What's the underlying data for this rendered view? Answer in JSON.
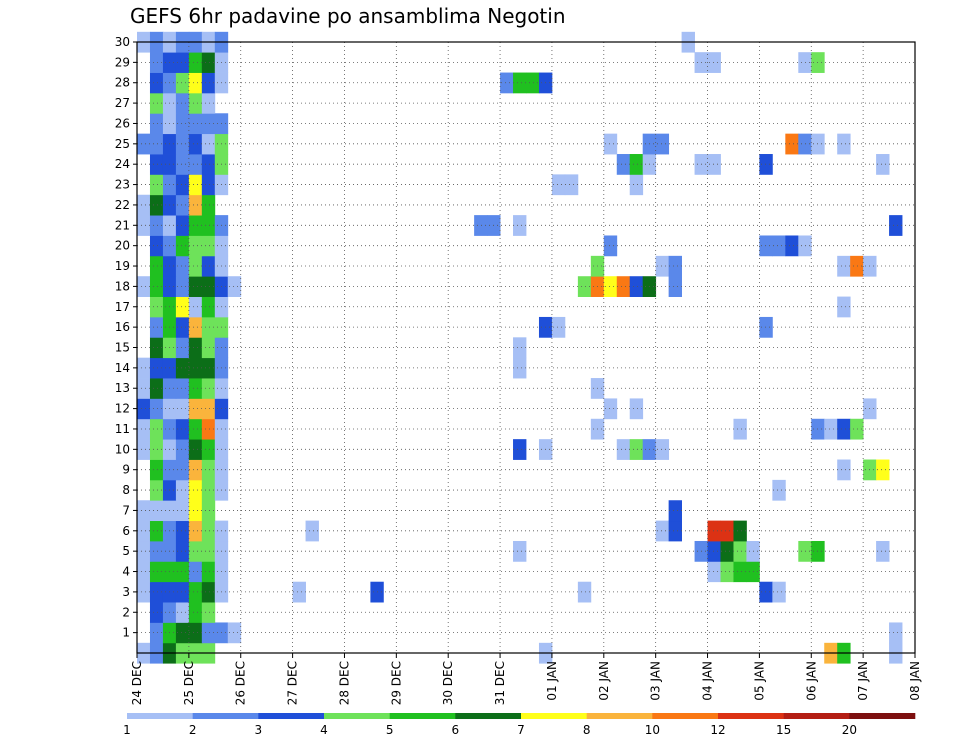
{
  "chart_data": {
    "type": "heatmap",
    "title": "GEFS 6hr padavine po ansamblima Negotin",
    "xlabel": "",
    "ylabel": "",
    "x_ticks": [
      "24 DEC",
      "25 DEC",
      "26 DEC",
      "27 DEC",
      "28 DEC",
      "29 DEC",
      "30 DEC",
      "31 DEC",
      "01 JAN",
      "02 JAN",
      "03 JAN",
      "04 JAN",
      "05 JAN",
      "06 JAN",
      "07 JAN",
      "08 JAN"
    ],
    "x_range": [
      0,
      15
    ],
    "time_step_days": 0.25,
    "y_ticks": [
      1,
      2,
      3,
      4,
      5,
      6,
      7,
      8,
      9,
      10,
      11,
      12,
      13,
      14,
      15,
      16,
      17,
      18,
      19,
      20,
      21,
      22,
      23,
      24,
      25,
      26,
      27,
      28,
      29,
      30
    ],
    "y_range": [
      0,
      30
    ],
    "grid": true,
    "legend": {
      "position": "bottom",
      "labels": [
        "1",
        "2",
        "3",
        "4",
        "5",
        "6",
        "7",
        "8",
        "10",
        "12",
        "15",
        "20"
      ],
      "colors": [
        "#a6bff5",
        "#5a88ea",
        "#1f4fd8",
        "#6ee25a",
        "#20c020",
        "#0c6e18",
        "#ffff1a",
        "#fab43c",
        "#fa7814",
        "#dc3214",
        "#b41e14",
        "#7d0f0f"
      ]
    },
    "cells_note": "each cell = [member (0 = control row at bottom), time step in 6h steps from 24 DEC 00z, colour class index 1-12]",
    "cells": [
      [
        0,
        0,
        1
      ],
      [
        0,
        1,
        2
      ],
      [
        0,
        2,
        6
      ],
      [
        0,
        3,
        4
      ],
      [
        0,
        4,
        4
      ],
      [
        0,
        5,
        4
      ],
      [
        0,
        31,
        1
      ],
      [
        0,
        53,
        8
      ],
      [
        0,
        54,
        5
      ],
      [
        0,
        58,
        1
      ],
      [
        1,
        1,
        2
      ],
      [
        1,
        2,
        5
      ],
      [
        1,
        3,
        6
      ],
      [
        1,
        4,
        6
      ],
      [
        1,
        5,
        2
      ],
      [
        1,
        6,
        2
      ],
      [
        1,
        7,
        1
      ],
      [
        1,
        58,
        1
      ],
      [
        2,
        1,
        3
      ],
      [
        2,
        2,
        2
      ],
      [
        2,
        3,
        1
      ],
      [
        2,
        4,
        5
      ],
      [
        2,
        5,
        4
      ],
      [
        3,
        0,
        1
      ],
      [
        3,
        1,
        3
      ],
      [
        3,
        2,
        3
      ],
      [
        3,
        3,
        3
      ],
      [
        3,
        4,
        5
      ],
      [
        3,
        5,
        6
      ],
      [
        3,
        6,
        1
      ],
      [
        3,
        12,
        1
      ],
      [
        3,
        18,
        3
      ],
      [
        3,
        34,
        1
      ],
      [
        3,
        48,
        3
      ],
      [
        3,
        49,
        1
      ],
      [
        4,
        0,
        1
      ],
      [
        4,
        1,
        5
      ],
      [
        4,
        2,
        5
      ],
      [
        4,
        3,
        5
      ],
      [
        4,
        4,
        2
      ],
      [
        4,
        5,
        5
      ],
      [
        4,
        6,
        1
      ],
      [
        4,
        44,
        1
      ],
      [
        4,
        45,
        4
      ],
      [
        4,
        46,
        5
      ],
      [
        4,
        47,
        5
      ],
      [
        5,
        0,
        1
      ],
      [
        5,
        1,
        2
      ],
      [
        5,
        2,
        2
      ],
      [
        5,
        3,
        3
      ],
      [
        5,
        4,
        4
      ],
      [
        5,
        5,
        4
      ],
      [
        5,
        6,
        1
      ],
      [
        5,
        29,
        1
      ],
      [
        5,
        43,
        2
      ],
      [
        5,
        44,
        3
      ],
      [
        5,
        45,
        6
      ],
      [
        5,
        46,
        4
      ],
      [
        5,
        47,
        1
      ],
      [
        5,
        51,
        4
      ],
      [
        5,
        52,
        5
      ],
      [
        5,
        57,
        1
      ],
      [
        6,
        0,
        1
      ],
      [
        6,
        1,
        5
      ],
      [
        6,
        2,
        2
      ],
      [
        6,
        3,
        3
      ],
      [
        6,
        4,
        8
      ],
      [
        6,
        5,
        4
      ],
      [
        6,
        6,
        1
      ],
      [
        6,
        13,
        1
      ],
      [
        6,
        40,
        1
      ],
      [
        6,
        41,
        3
      ],
      [
        6,
        44,
        10
      ],
      [
        6,
        45,
        10
      ],
      [
        6,
        46,
        6
      ],
      [
        7,
        0,
        1
      ],
      [
        7,
        1,
        1
      ],
      [
        7,
        2,
        1
      ],
      [
        7,
        3,
        1
      ],
      [
        7,
        4,
        7
      ],
      [
        7,
        5,
        4
      ],
      [
        7,
        41,
        3
      ],
      [
        8,
        1,
        4
      ],
      [
        8,
        2,
        3
      ],
      [
        8,
        3,
        1
      ],
      [
        8,
        4,
        7
      ],
      [
        8,
        5,
        4
      ],
      [
        8,
        6,
        1
      ],
      [
        8,
        49,
        1
      ],
      [
        9,
        1,
        5
      ],
      [
        9,
        2,
        2
      ],
      [
        9,
        3,
        2
      ],
      [
        9,
        4,
        8
      ],
      [
        9,
        5,
        4
      ],
      [
        9,
        6,
        1
      ],
      [
        9,
        54,
        1
      ],
      [
        9,
        56,
        4
      ],
      [
        9,
        57,
        7
      ],
      [
        10,
        0,
        1
      ],
      [
        10,
        1,
        4
      ],
      [
        10,
        2,
        1
      ],
      [
        10,
        3,
        2
      ],
      [
        10,
        4,
        6
      ],
      [
        10,
        5,
        5
      ],
      [
        10,
        6,
        1
      ],
      [
        10,
        29,
        3
      ],
      [
        10,
        31,
        1
      ],
      [
        10,
        37,
        1
      ],
      [
        10,
        38,
        4
      ],
      [
        10,
        39,
        2
      ],
      [
        10,
        40,
        1
      ],
      [
        11,
        0,
        1
      ],
      [
        11,
        1,
        4
      ],
      [
        11,
        2,
        2
      ],
      [
        11,
        3,
        3
      ],
      [
        11,
        4,
        5
      ],
      [
        11,
        5,
        9
      ],
      [
        11,
        6,
        1
      ],
      [
        11,
        35,
        1
      ],
      [
        11,
        46,
        1
      ],
      [
        11,
        52,
        2
      ],
      [
        11,
        53,
        1
      ],
      [
        11,
        54,
        3
      ],
      [
        11,
        55,
        4
      ],
      [
        12,
        0,
        3
      ],
      [
        12,
        1,
        2
      ],
      [
        12,
        2,
        1
      ],
      [
        12,
        3,
        1
      ],
      [
        12,
        4,
        8
      ],
      [
        12,
        5,
        8
      ],
      [
        12,
        6,
        3
      ],
      [
        12,
        36,
        1
      ],
      [
        12,
        38,
        1
      ],
      [
        12,
        56,
        1
      ],
      [
        13,
        0,
        1
      ],
      [
        13,
        1,
        6
      ],
      [
        13,
        2,
        2
      ],
      [
        13,
        3,
        2
      ],
      [
        13,
        4,
        5
      ],
      [
        13,
        5,
        4
      ],
      [
        13,
        6,
        1
      ],
      [
        13,
        35,
        1
      ],
      [
        14,
        0,
        1
      ],
      [
        14,
        1,
        3
      ],
      [
        14,
        2,
        3
      ],
      [
        14,
        3,
        6
      ],
      [
        14,
        4,
        6
      ],
      [
        14,
        5,
        6
      ],
      [
        14,
        6,
        2
      ],
      [
        14,
        29,
        1
      ],
      [
        15,
        1,
        6
      ],
      [
        15,
        2,
        4
      ],
      [
        15,
        3,
        2
      ],
      [
        15,
        4,
        6
      ],
      [
        15,
        5,
        4
      ],
      [
        15,
        6,
        2
      ],
      [
        15,
        29,
        1
      ],
      [
        16,
        1,
        2
      ],
      [
        16,
        2,
        5
      ],
      [
        16,
        3,
        3
      ],
      [
        16,
        4,
        8
      ],
      [
        16,
        5,
        4
      ],
      [
        16,
        6,
        4
      ],
      [
        16,
        31,
        3
      ],
      [
        16,
        32,
        1
      ],
      [
        16,
        48,
        2
      ],
      [
        17,
        1,
        4
      ],
      [
        17,
        2,
        5
      ],
      [
        17,
        3,
        7
      ],
      [
        17,
        4,
        1
      ],
      [
        17,
        5,
        5
      ],
      [
        17,
        6,
        1
      ],
      [
        17,
        54,
        1
      ],
      [
        18,
        0,
        1
      ],
      [
        18,
        1,
        5
      ],
      [
        18,
        2,
        3
      ],
      [
        18,
        3,
        2
      ],
      [
        18,
        4,
        6
      ],
      [
        18,
        5,
        6
      ],
      [
        18,
        6,
        3
      ],
      [
        18,
        7,
        1
      ],
      [
        18,
        34,
        4
      ],
      [
        18,
        35,
        9
      ],
      [
        18,
        36,
        7
      ],
      [
        18,
        37,
        9
      ],
      [
        18,
        38,
        3
      ],
      [
        18,
        39,
        6
      ],
      [
        18,
        41,
        2
      ],
      [
        19,
        1,
        5
      ],
      [
        19,
        2,
        3
      ],
      [
        19,
        3,
        2
      ],
      [
        19,
        4,
        4
      ],
      [
        19,
        5,
        3
      ],
      [
        19,
        6,
        1
      ],
      [
        19,
        35,
        4
      ],
      [
        19,
        40,
        1
      ],
      [
        19,
        41,
        2
      ],
      [
        19,
        54,
        1
      ],
      [
        19,
        55,
        9
      ],
      [
        19,
        56,
        1
      ],
      [
        20,
        1,
        3
      ],
      [
        20,
        2,
        2
      ],
      [
        20,
        3,
        5
      ],
      [
        20,
        4,
        4
      ],
      [
        20,
        5,
        4
      ],
      [
        20,
        6,
        1
      ],
      [
        20,
        36,
        2
      ],
      [
        20,
        48,
        2
      ],
      [
        20,
        49,
        2
      ],
      [
        20,
        50,
        3
      ],
      [
        20,
        51,
        1
      ],
      [
        21,
        0,
        1
      ],
      [
        21,
        1,
        2
      ],
      [
        21,
        2,
        1
      ],
      [
        21,
        3,
        3
      ],
      [
        21,
        4,
        5
      ],
      [
        21,
        5,
        5
      ],
      [
        21,
        6,
        2
      ],
      [
        21,
        26,
        2
      ],
      [
        21,
        27,
        2
      ],
      [
        21,
        29,
        1
      ],
      [
        21,
        58,
        3
      ],
      [
        22,
        0,
        1
      ],
      [
        22,
        1,
        6
      ],
      [
        22,
        2,
        3
      ],
      [
        22,
        3,
        2
      ],
      [
        22,
        4,
        8
      ],
      [
        22,
        5,
        5
      ],
      [
        23,
        1,
        4
      ],
      [
        23,
        2,
        2
      ],
      [
        23,
        3,
        3
      ],
      [
        23,
        4,
        7
      ],
      [
        23,
        5,
        3
      ],
      [
        23,
        6,
        1
      ],
      [
        23,
        32,
        1
      ],
      [
        23,
        33,
        1
      ],
      [
        23,
        38,
        1
      ],
      [
        24,
        1,
        3
      ],
      [
        24,
        2,
        3
      ],
      [
        24,
        3,
        2
      ],
      [
        24,
        4,
        2
      ],
      [
        24,
        5,
        3
      ],
      [
        24,
        6,
        4
      ],
      [
        24,
        37,
        2
      ],
      [
        24,
        38,
        5
      ],
      [
        24,
        39,
        1
      ],
      [
        24,
        43,
        1
      ],
      [
        24,
        44,
        1
      ],
      [
        24,
        48,
        3
      ],
      [
        24,
        57,
        1
      ],
      [
        25,
        0,
        2
      ],
      [
        25,
        1,
        2
      ],
      [
        25,
        2,
        3
      ],
      [
        25,
        3,
        2
      ],
      [
        25,
        4,
        3
      ],
      [
        25,
        5,
        1
      ],
      [
        25,
        6,
        4
      ],
      [
        25,
        36,
        1
      ],
      [
        25,
        39,
        2
      ],
      [
        25,
        40,
        2
      ],
      [
        25,
        50,
        9
      ],
      [
        25,
        51,
        2
      ],
      [
        25,
        52,
        1
      ],
      [
        25,
        54,
        1
      ],
      [
        26,
        1,
        2
      ],
      [
        26,
        2,
        1
      ],
      [
        26,
        3,
        2
      ],
      [
        26,
        4,
        2
      ],
      [
        26,
        5,
        2
      ],
      [
        26,
        6,
        2
      ],
      [
        27,
        1,
        4
      ],
      [
        27,
        2,
        1
      ],
      [
        27,
        3,
        2
      ],
      [
        27,
        4,
        4
      ],
      [
        27,
        5,
        1
      ],
      [
        28,
        1,
        3
      ],
      [
        28,
        2,
        2
      ],
      [
        28,
        3,
        4
      ],
      [
        28,
        4,
        7
      ],
      [
        28,
        5,
        3
      ],
      [
        28,
        6,
        1
      ],
      [
        28,
        28,
        2
      ],
      [
        28,
        29,
        5
      ],
      [
        28,
        30,
        5
      ],
      [
        28,
        31,
        3
      ],
      [
        29,
        1,
        2
      ],
      [
        29,
        2,
        3
      ],
      [
        29,
        3,
        3
      ],
      [
        29,
        4,
        5
      ],
      [
        29,
        5,
        6
      ],
      [
        29,
        6,
        1
      ],
      [
        29,
        43,
        1
      ],
      [
        29,
        44,
        1
      ],
      [
        29,
        51,
        1
      ],
      [
        29,
        52,
        4
      ],
      [
        30,
        0,
        1
      ],
      [
        30,
        1,
        2
      ],
      [
        30,
        2,
        1
      ],
      [
        30,
        3,
        2
      ],
      [
        30,
        4,
        2
      ],
      [
        30,
        5,
        1
      ],
      [
        30,
        6,
        2
      ],
      [
        30,
        42,
        1
      ]
    ]
  }
}
